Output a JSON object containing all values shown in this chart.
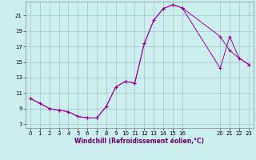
{
  "xlabel": "Windchill (Refroidissement éolien,°C)",
  "background_color": "#cceeee",
  "grid_color": "#99bbbb",
  "line_color": "#990099",
  "xlim": [
    -0.5,
    23.5
  ],
  "ylim": [
    6.5,
    22.8
  ],
  "xticks": [
    0,
    1,
    2,
    3,
    4,
    5,
    6,
    7,
    8,
    9,
    10,
    11,
    12,
    13,
    14,
    15,
    16,
    20,
    21,
    22,
    23
  ],
  "yticks": [
    7,
    9,
    11,
    13,
    15,
    17,
    19,
    21
  ],
  "curve1_x": [
    0,
    1,
    2,
    3,
    4,
    5,
    6,
    7,
    8,
    9,
    10,
    11,
    12,
    13,
    14,
    15,
    16,
    20,
    21,
    22,
    23
  ],
  "curve1_y": [
    10.3,
    9.7,
    9.0,
    8.8,
    8.6,
    8.0,
    7.8,
    7.8,
    9.3,
    11.8,
    12.5,
    12.3,
    17.4,
    20.4,
    21.9,
    22.4,
    22.0,
    14.2,
    18.3,
    15.5,
    14.7
  ],
  "curve2_x": [
    0,
    1,
    2,
    3,
    4,
    5,
    6,
    7,
    8,
    9,
    10,
    11,
    12,
    13,
    14,
    15,
    16,
    20,
    21,
    22,
    23
  ],
  "curve2_y": [
    10.3,
    9.7,
    9.0,
    8.8,
    8.6,
    8.0,
    7.8,
    7.8,
    9.3,
    11.8,
    12.5,
    12.3,
    17.4,
    20.4,
    21.9,
    22.4,
    22.0,
    18.3,
    16.5,
    15.5,
    14.7
  ],
  "tick_fontsize": 5,
  "xlabel_fontsize": 5.5
}
